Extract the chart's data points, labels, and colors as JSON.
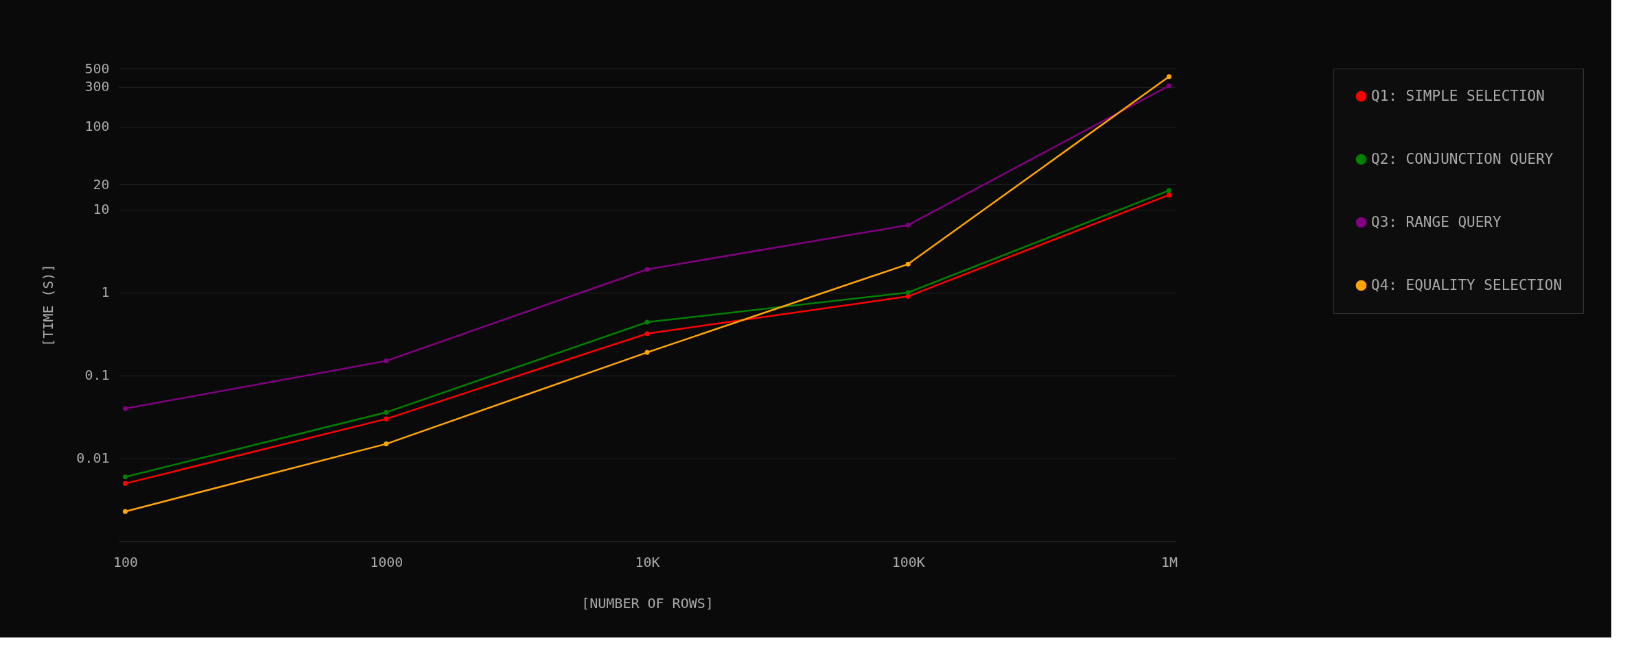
{
  "chart_data": {
    "type": "line",
    "xlabel": "[NUMBER OF ROWS]",
    "ylabel": "[TIME (S)]",
    "categories": [
      "100",
      "1000",
      "10K",
      "100K",
      "1M"
    ],
    "series": [
      {
        "name": "Q1: SIMPLE SELECTION",
        "color": "#ff0000",
        "values": [
          0.005,
          0.03,
          0.32,
          0.9,
          15
        ]
      },
      {
        "name": "Q2: CONJUNCTION QUERY",
        "color": "#008000",
        "values": [
          0.006,
          0.036,
          0.44,
          1.0,
          17
        ]
      },
      {
        "name": "Q3: RANGE QUERY",
        "color": "#800080",
        "values": [
          0.04,
          0.15,
          1.9,
          6.5,
          310
        ]
      },
      {
        "name": "Q4: EQUALITY SELECTION",
        "color": "#ffa500",
        "values": [
          0.0023,
          0.015,
          0.19,
          2.2,
          400
        ]
      }
    ],
    "log": "y",
    "ylim": [
      0.001,
      500
    ],
    "yticks": [
      0.01,
      0.1,
      1,
      10,
      20,
      100,
      300,
      500
    ],
    "grid": "y",
    "legend": "right",
    "marker": "circle",
    "line_style": "solid"
  }
}
